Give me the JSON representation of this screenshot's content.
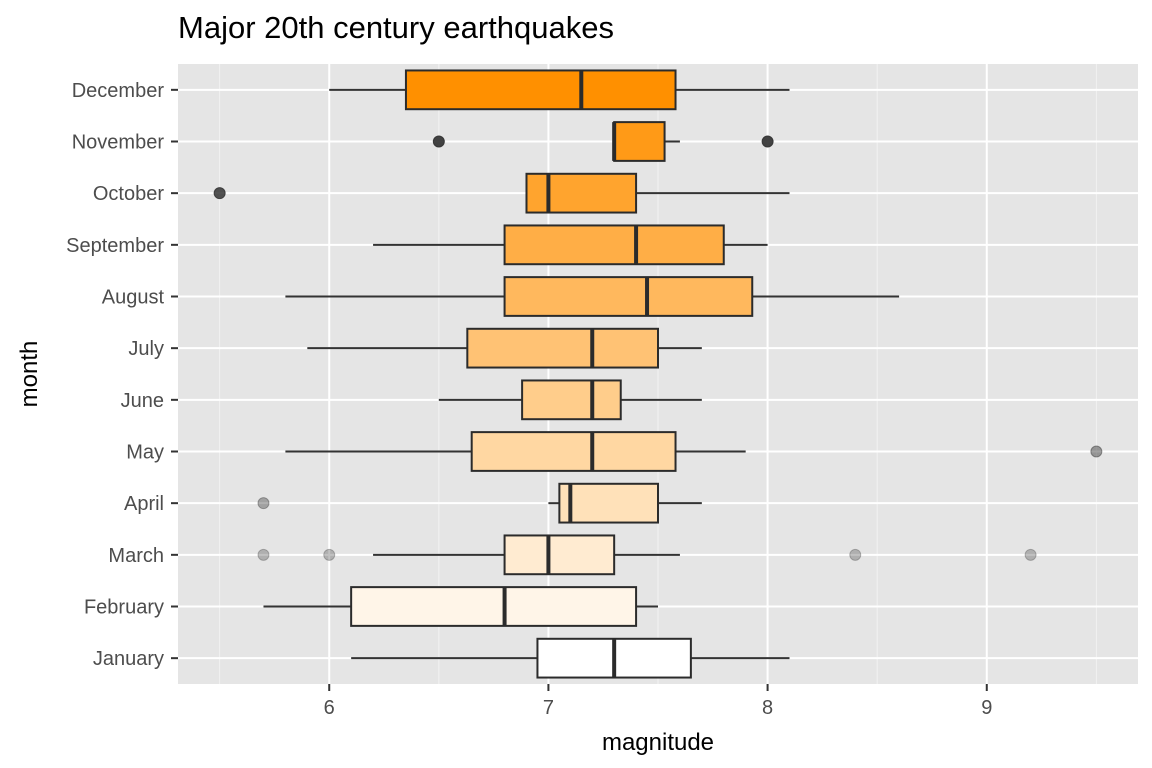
{
  "chart_data": {
    "type": "boxplot",
    "title": "Major 20th century earthquakes",
    "xlabel": "magnitude",
    "ylabel": "month",
    "xlim": [
      5.31,
      9.69
    ],
    "x_ticks": [
      6,
      7,
      8,
      9
    ],
    "grid": true,
    "legend": "none",
    "fill_colors": {
      "low": "#ffffff",
      "high": "#ff9000"
    },
    "outlier_color": "#333333",
    "categories": [
      "January",
      "February",
      "March",
      "April",
      "May",
      "June",
      "July",
      "August",
      "September",
      "October",
      "November",
      "December"
    ],
    "boxes": [
      {
        "month": "January",
        "whisker_low": 6.1,
        "q1": 6.95,
        "median": 7.3,
        "q3": 7.65,
        "whisker_high": 8.1,
        "outliers": []
      },
      {
        "month": "February",
        "whisker_low": 5.7,
        "q1": 6.1,
        "median": 6.8,
        "q3": 7.4,
        "whisker_high": 7.5,
        "outliers": []
      },
      {
        "month": "March",
        "whisker_low": 6.2,
        "q1": 6.8,
        "median": 7.0,
        "q3": 7.3,
        "whisker_high": 7.6,
        "outliers": [
          5.7,
          6.0,
          8.4,
          9.2
        ]
      },
      {
        "month": "April",
        "whisker_low": 7.0,
        "q1": 7.05,
        "median": 7.1,
        "q3": 7.5,
        "whisker_high": 7.7,
        "outliers": [
          5.7
        ]
      },
      {
        "month": "May",
        "whisker_low": 5.8,
        "q1": 6.65,
        "median": 7.2,
        "q3": 7.58,
        "whisker_high": 7.9,
        "outliers": [
          9.5
        ]
      },
      {
        "month": "June",
        "whisker_low": 6.5,
        "q1": 6.88,
        "median": 7.2,
        "q3": 7.33,
        "whisker_high": 7.7,
        "outliers": []
      },
      {
        "month": "July",
        "whisker_low": 5.9,
        "q1": 6.63,
        "median": 7.2,
        "q3": 7.5,
        "whisker_high": 7.7,
        "outliers": []
      },
      {
        "month": "August",
        "whisker_low": 5.8,
        "q1": 6.8,
        "median": 7.45,
        "q3": 7.93,
        "whisker_high": 8.6,
        "outliers": []
      },
      {
        "month": "September",
        "whisker_low": 6.2,
        "q1": 6.8,
        "median": 7.4,
        "q3": 7.8,
        "whisker_high": 8.0,
        "outliers": []
      },
      {
        "month": "October",
        "whisker_low": 6.9,
        "q1": 6.9,
        "median": 7.0,
        "q3": 7.4,
        "whisker_high": 8.1,
        "outliers": [
          5.5
        ]
      },
      {
        "month": "November",
        "whisker_low": 7.3,
        "q1": 7.3,
        "median": 7.3,
        "q3": 7.53,
        "whisker_high": 7.6,
        "outliers": [
          6.5,
          8.0
        ]
      },
      {
        "month": "December",
        "whisker_low": 6.0,
        "q1": 6.35,
        "median": 7.15,
        "q3": 7.58,
        "whisker_high": 8.1,
        "outliers": []
      }
    ]
  }
}
